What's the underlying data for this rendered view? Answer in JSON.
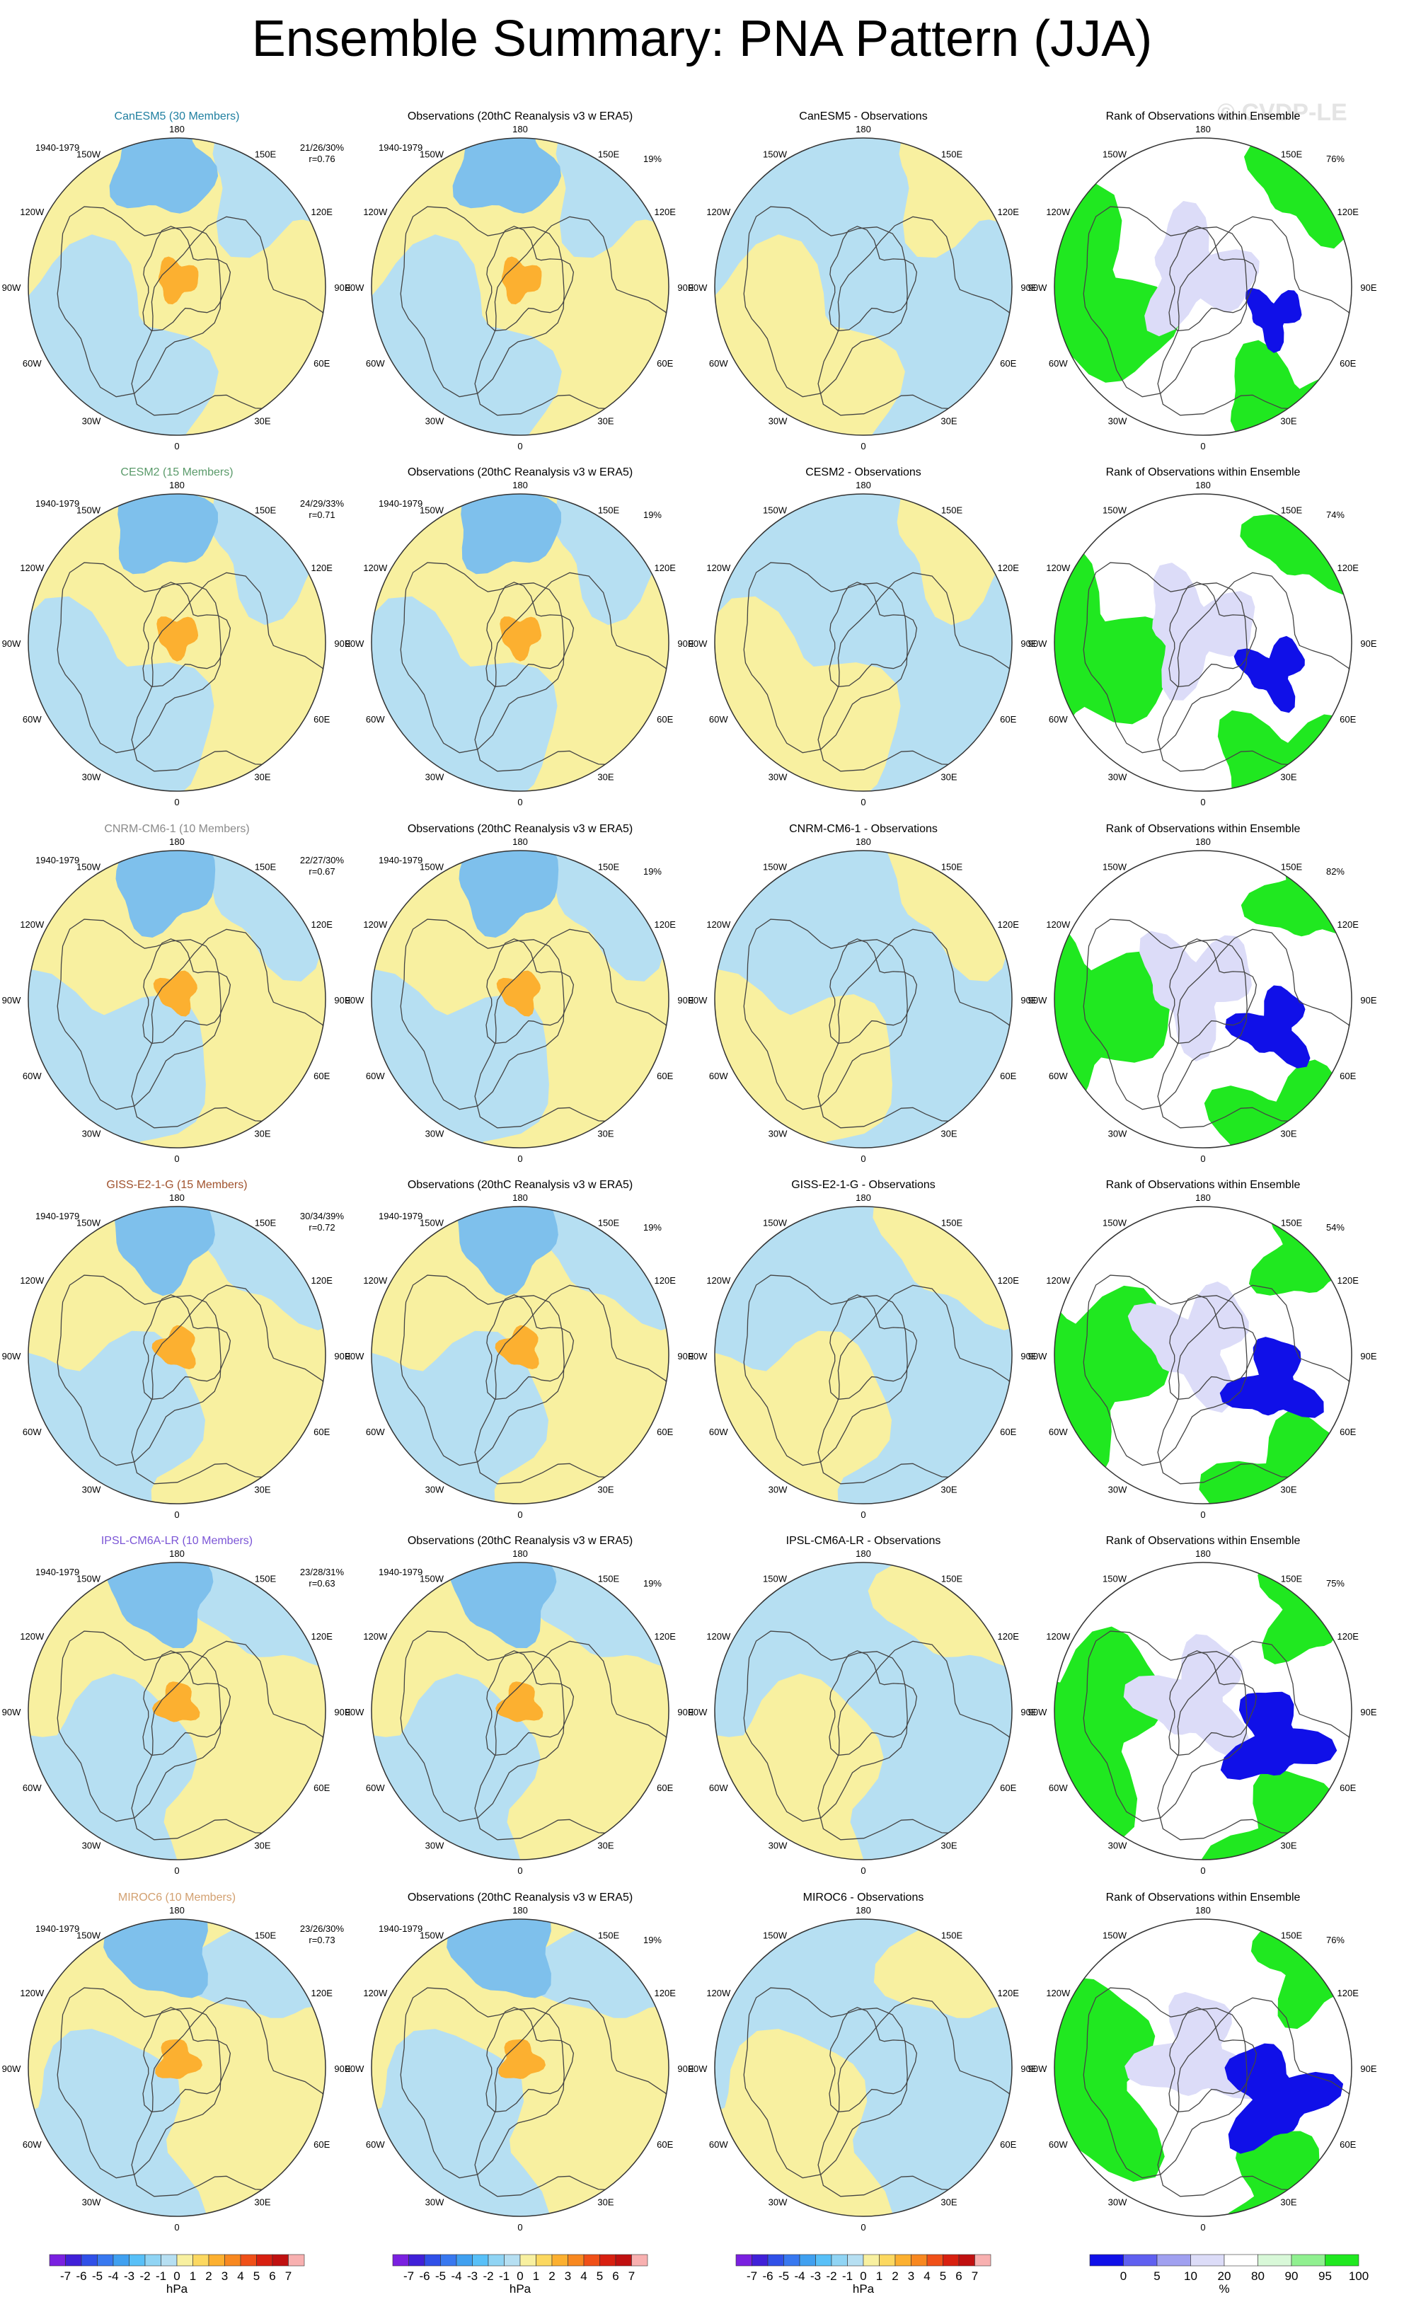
{
  "title": "Ensemble Summary: PNA Pattern (JJA)",
  "watermark": "© CVDP-LE",
  "period": "1940-1979",
  "obs_title": "Observations (20thC Reanalysis v3 w ERA5)",
  "rank_title": "Rank of Observations within Ensemble",
  "obs_pct": "19%",
  "lon_labels": {
    "top": "180",
    "bottom": "0",
    "l1": "150W",
    "l2": "120W",
    "l3": "90W",
    "l4": "60W",
    "l5": "30W",
    "r1": "150E",
    "r2": "120E",
    "r3": "90E",
    "r4": "60E",
    "r5": "30E"
  },
  "models": [
    {
      "title": "CanESM5 (30 Members)",
      "color": "#1f7fa0",
      "stat": "21/26/30%",
      "r": "r=0.76",
      "diff_title": "CanESM5 - Observations",
      "rank_pct": "76%"
    },
    {
      "title": "CESM2 (15 Members)",
      "color": "#5a9a6a",
      "stat": "24/29/33%",
      "r": "r=0.71",
      "diff_title": "CESM2 - Observations",
      "rank_pct": "74%"
    },
    {
      "title": "CNRM-CM6-1 (10 Members)",
      "color": "#8a8a8a",
      "stat": "22/27/30%",
      "r": "r=0.67",
      "diff_title": "CNRM-CM6-1 - Observations",
      "rank_pct": "82%"
    },
    {
      "title": "GISS-E2-1-G (15 Members)",
      "color": "#a0522d",
      "stat": "30/34/39%",
      "r": "r=0.72",
      "diff_title": "GISS-E2-1-G - Observations",
      "rank_pct": "54%"
    },
    {
      "title": "IPSL-CM6A-LR (10 Members)",
      "color": "#7b55d6",
      "stat": "23/28/31%",
      "r": "r=0.63",
      "diff_title": "IPSL-CM6A-LR - Observations",
      "rank_pct": "75%"
    },
    {
      "title": "MIROC6 (10 Members)",
      "color": "#d2a070",
      "stat": "23/26/30%",
      "r": "r=0.73",
      "diff_title": "MIROC6 - Observations",
      "rank_pct": "76%"
    }
  ],
  "colorbar_hpa": {
    "labels": [
      "-7",
      "-6",
      "-5",
      "-4",
      "-3",
      "-2",
      "-1",
      "0",
      "1",
      "2",
      "3",
      "4",
      "5",
      "6",
      "7"
    ],
    "colors": [
      "#7a20e0",
      "#4020d8",
      "#3050e8",
      "#3878f0",
      "#40a0f0",
      "#58c0f8",
      "#90d4f4",
      "#b6dff2",
      "#f8f0a0",
      "#fcd860",
      "#fcb030",
      "#f88820",
      "#f05018",
      "#d82010",
      "#c01010",
      "#f8b0b0"
    ],
    "unit": "hPa"
  },
  "colorbar_rank": {
    "labels": [
      "0",
      "5",
      "10",
      "20",
      "80",
      "90",
      "95",
      "100"
    ],
    "colors": [
      "#1010e8",
      "#6060f0",
      "#a0a0f0",
      "#dcdcf8",
      "#ffffff",
      "#d8f8d8",
      "#90f090",
      "#20e820"
    ],
    "unit": "%"
  },
  "colors": {
    "land_outline": "#444444",
    "ocean_blue": "#b6dff2",
    "yellow": "#f8f0a0",
    "orange": "#fcb030",
    "mid_blue": "#7ec0ec",
    "rank_green": "#20e820",
    "rank_blue": "#1010e8",
    "rank_lav": "#dcdcf8"
  }
}
